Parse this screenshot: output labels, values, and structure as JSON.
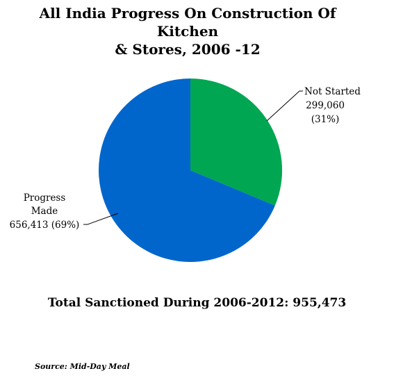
{
  "title": {
    "line1": "All India Progress On Construction Of Kitchen",
    "line2": "& Stores, 2006 -12"
  },
  "chart_data": {
    "type": "pie",
    "title": "All India Progress On Construction Of Kitchen & Stores, 2006 -12",
    "slices": [
      {
        "name": "Not Started",
        "value": 299060,
        "value_label": "299,060",
        "percent_label": "(31%)",
        "color": "#00a651"
      },
      {
        "name": "Progress Made",
        "value": 656413,
        "value_label": "656,413 (69%)",
        "color": "#0066cc"
      }
    ],
    "legend": "none"
  },
  "labels": {
    "not_started": [
      "Not Started",
      "299,060",
      "(31%)"
    ],
    "progress_made": [
      "Progress",
      "Made",
      "656,413 (69%)"
    ]
  },
  "total_text": "Total Sanctioned During 2006-2012: 955,473",
  "source_text": "Source: Mid-Day Meal"
}
